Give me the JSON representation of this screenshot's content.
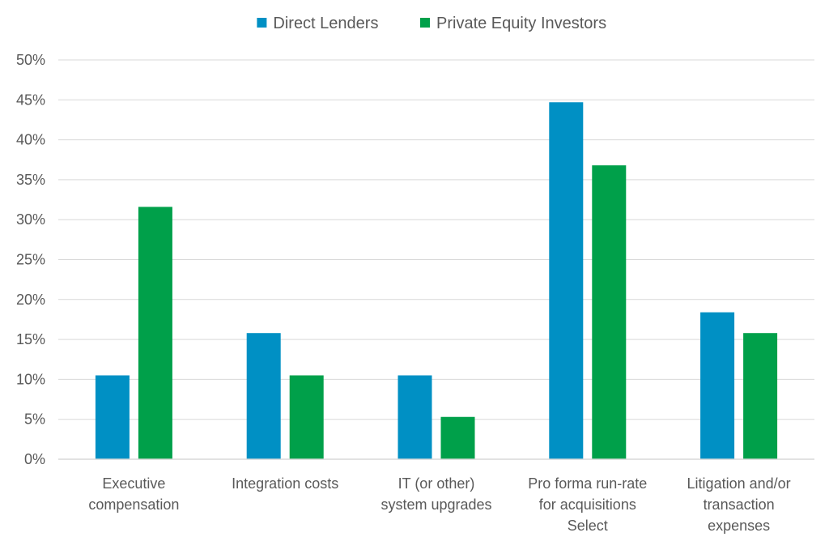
{
  "chart_data": {
    "type": "bar",
    "title": "",
    "xlabel": "",
    "ylabel": "",
    "categories": [
      [
        "Executive",
        "compensation"
      ],
      [
        "Integration costs"
      ],
      [
        "IT (or other)",
        "system upgrades"
      ],
      [
        "Pro forma run-rate",
        "for acquisitions",
        "Select"
      ],
      [
        "Litigation and/or",
        "transaction",
        "expenses"
      ]
    ],
    "series": [
      {
        "name": "Direct Lenders",
        "color": "#0090C4",
        "values": [
          10.5,
          15.8,
          10.5,
          44.7,
          18.4
        ]
      },
      {
        "name": "Private Equity Investors",
        "color": "#00A04A",
        "values": [
          31.6,
          10.5,
          5.3,
          36.8,
          15.8
        ]
      }
    ],
    "ylim": [
      0,
      50
    ],
    "yticks": [
      0,
      5,
      10,
      15,
      20,
      25,
      30,
      35,
      40,
      45,
      50
    ],
    "ytick_labels": [
      "0%",
      "5%",
      "10%",
      "15%",
      "20%",
      "25%",
      "30%",
      "35%",
      "40%",
      "45%",
      "50%"
    ],
    "grid": true,
    "legend_position": "top-center"
  }
}
